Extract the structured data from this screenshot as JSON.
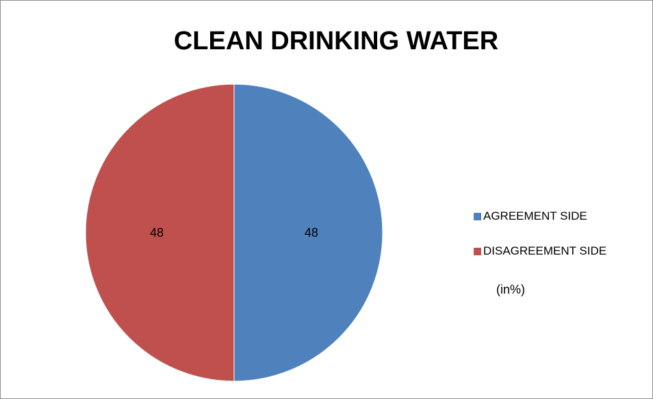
{
  "chart_data": {
    "type": "pie",
    "title": "CLEAN DRINKING WATER",
    "unit_note": "(in%)",
    "legend_position": "right",
    "slices": [
      {
        "label": "AGREEMENT SIDE",
        "value": 48,
        "color": "#4f81bd"
      },
      {
        "label": "DISAGREEMENT SIDE",
        "value": 48,
        "color": "#c0504d"
      }
    ]
  }
}
